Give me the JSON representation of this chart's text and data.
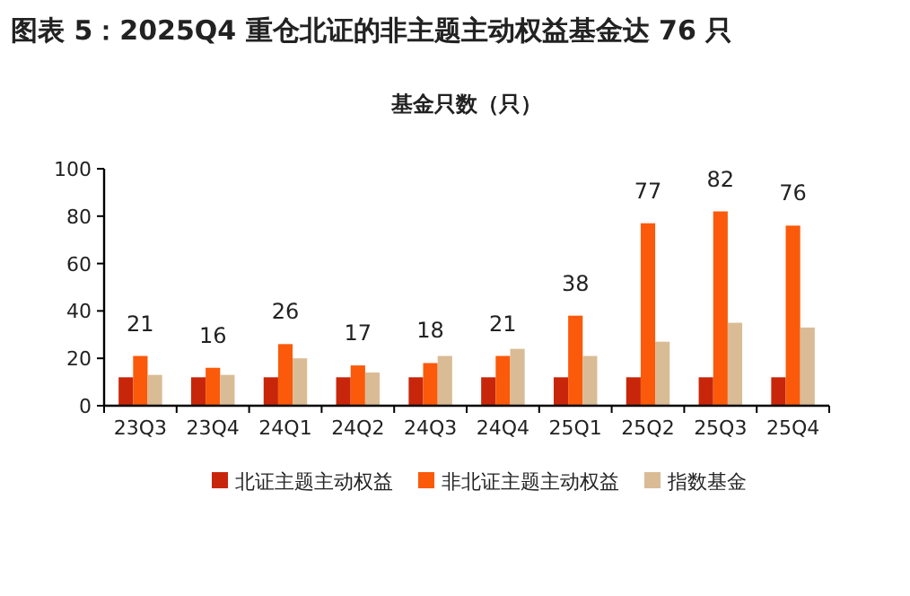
{
  "chart_data": {
    "type": "bar",
    "title": "图表 5：2025Q4 重仓北证的非主题主动权益基金达 76 只",
    "subtitle": "基金只数（只）",
    "categories": [
      "23Q3",
      "23Q4",
      "24Q1",
      "24Q2",
      "24Q3",
      "24Q4",
      "25Q1",
      "25Q2",
      "25Q3",
      "25Q4"
    ],
    "series": [
      {
        "name": "北证主题主动权益",
        "color": "#c8260a",
        "values": [
          12,
          12,
          12,
          12,
          12,
          12,
          12,
          12,
          12,
          12
        ]
      },
      {
        "name": "非北证主题主动权益",
        "color": "#fa5a0a",
        "values": [
          21,
          16,
          26,
          17,
          18,
          21,
          38,
          77,
          82,
          76
        ],
        "value_labels": [
          "21",
          "16",
          "26",
          "17",
          "18",
          "21",
          "38",
          "77",
          "82",
          "76"
        ]
      },
      {
        "name": "指数基金",
        "color": "#d9bc95",
        "values": [
          13,
          13,
          20,
          14,
          21,
          24,
          21,
          27,
          35,
          33
        ]
      }
    ],
    "ylim": [
      0,
      100
    ],
    "yticks": [
      0,
      20,
      40,
      60,
      80,
      100
    ],
    "grid": false,
    "legend": "bottom"
  }
}
